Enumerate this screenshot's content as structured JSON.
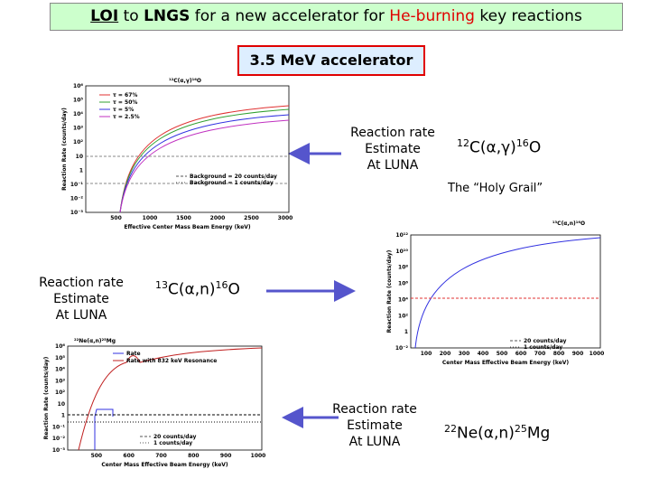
{
  "header": {
    "title_parts": [
      "LOI",
      " to ",
      "LNGS",
      " for a new accelerator for ",
      "He-burning",
      " key reactions"
    ]
  },
  "subtitle": "3.5 MeV accelerator",
  "estimate_text": [
    "Reaction rate",
    "Estimate",
    "At LUNA"
  ],
  "reactions": [
    {
      "mass_a": "12",
      "formula": "C(α,γ)",
      "mass_b": "16",
      "product": "O",
      "note": "The “Holy Grail”"
    },
    {
      "mass_a": "13",
      "formula": "C(α,n)",
      "mass_b": "16",
      "product": "O"
    },
    {
      "mass_a": "22",
      "formula": "Ne(α,n)",
      "mass_b": "25",
      "product": "Mg"
    }
  ],
  "plots": [
    {
      "title": "¹²C(α,γ)¹⁶O",
      "y_label": "Reaction Rate (counts/day)",
      "x_label": "Effective Center Mass Beam Energy (keV)",
      "x_ticks": [
        "500",
        "1000",
        "1500",
        "2000",
        "2500",
        "3000"
      ],
      "y_ticks": [
        "10⁶",
        "10⁵",
        "10⁴",
        "10³",
        "10²",
        "10",
        "1",
        "10⁻¹",
        "10⁻²",
        "10⁻³"
      ],
      "legend": [
        "τ = 67%",
        "τ = 50%",
        "τ = 5%",
        "τ = 2.5%"
      ],
      "background_legend": [
        "Background = 20 counts/day",
        "Background = 1 counts/day"
      ]
    },
    {
      "title": "¹³C(α,n)¹⁶O",
      "y_label": "Reaction Rate (counts/day)",
      "x_label": "Center Mass Effective Beam Energy (keV)",
      "x_ticks": [
        "100",
        "200",
        "300",
        "400",
        "500",
        "600",
        "700",
        "800",
        "900",
        "1000"
      ],
      "y_ticks": [
        "10¹²",
        "10¹⁰",
        "10⁸",
        "10⁶",
        "10⁴",
        "10²",
        "1",
        "10⁻²"
      ],
      "background_legend": [
        "20 counts/day",
        "1 counts/day"
      ]
    },
    {
      "title": "²²Ne(α,n)²⁵Mg",
      "y_label": "Reaction Rate (counts/day)",
      "x_label": "Center Mass Effective Beam Energy (keV)",
      "x_ticks": [
        "500",
        "600",
        "700",
        "800",
        "900",
        "1000"
      ],
      "y_ticks": [
        "10⁶",
        "10⁵",
        "10⁴",
        "10³",
        "10²",
        "10",
        "1",
        "10⁻¹",
        "10⁻²",
        "10⁻³"
      ],
      "legend": [
        "Rate",
        "Rate with 832 keV Resonance"
      ],
      "background_legend": [
        "20 counts/day",
        "1 counts/day"
      ]
    }
  ]
}
